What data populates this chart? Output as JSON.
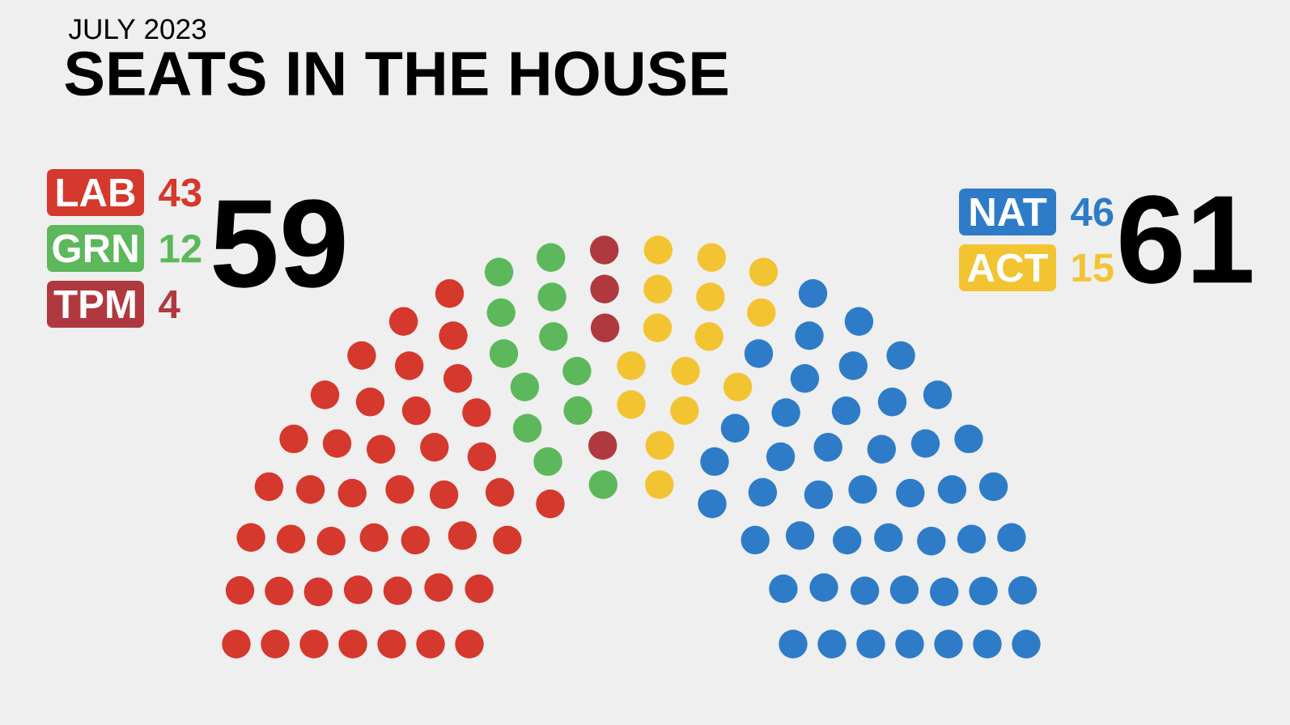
{
  "chart_data": {
    "type": "other",
    "subtitle": "JULY 2023",
    "title": "SEATS IN THE HOUSE",
    "categories": [
      "LAB",
      "GRN",
      "TPM",
      "NAT",
      "ACT"
    ],
    "values": [
      43,
      12,
      4,
      46,
      15
    ],
    "colors": [
      "#d5382c",
      "#5cb85a",
      "#b0393f",
      "#2e7cc8",
      "#f3c432"
    ],
    "data_labels": true,
    "value_labels": [
      "43",
      "12",
      "4",
      "46",
      "15"
    ],
    "annotations": [
      "59",
      "61"
    ]
  }
}
